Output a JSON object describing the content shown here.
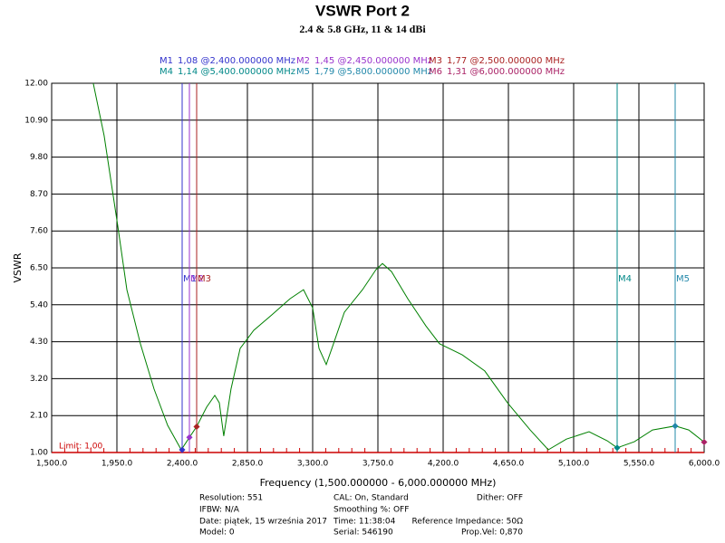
{
  "chart_data": {
    "type": "line",
    "title": "VSWR Port 2",
    "subtitle": "2.4 & 5.8 GHz, 11 & 14 dBi",
    "xlabel": "Frequency (1,500.000000 - 6,000.000000 MHz)",
    "ylabel": "VSWR",
    "xlim": [
      1500,
      6000
    ],
    "xticks": [
      {
        "value": 1500,
        "label": "1,500.0"
      },
      {
        "value": 1950,
        "label": "1,950.0"
      },
      {
        "value": 2400,
        "label": "2,400.0"
      },
      {
        "value": 2850,
        "label": "2,850.0"
      },
      {
        "value": 3300,
        "label": "3,300.0"
      },
      {
        "value": 3750,
        "label": "3,750.0"
      },
      {
        "value": 4200,
        "label": "4,200.0"
      },
      {
        "value": 4650,
        "label": "4,650.0"
      },
      {
        "value": 5100,
        "label": "5,100.0"
      },
      {
        "value": 5550,
        "label": "5,550.0"
      },
      {
        "value": 6000,
        "label": "6,000.0"
      }
    ],
    "ylim": [
      1,
      12
    ],
    "yticks": [
      {
        "value": 1,
        "label": "1.00"
      },
      {
        "value": 2.1,
        "label": "2.10"
      },
      {
        "value": 3.2,
        "label": "3.20"
      },
      {
        "value": 4.3,
        "label": "4.30"
      },
      {
        "value": 5.4,
        "label": "5.40"
      },
      {
        "value": 6.5,
        "label": "6.50"
      },
      {
        "value": 7.6,
        "label": "7.60"
      },
      {
        "value": 8.7,
        "label": "8.70"
      },
      {
        "value": 9.8,
        "label": "9.80"
      },
      {
        "value": 10.9,
        "label": "10.90"
      },
      {
        "value": 12,
        "label": "12.00"
      }
    ],
    "grid": true,
    "series": [
      {
        "color": "#008000",
        "x": [
          1787,
          1862,
          1956,
          2019,
          2112,
          2206,
          2300,
          2394,
          2450,
          2500,
          2569,
          2625,
          2656,
          2687,
          2737,
          2800,
          2894,
          3019,
          3144,
          3237,
          3300,
          3344,
          3394,
          3444,
          3519,
          3644,
          3737,
          3781,
          3844,
          3956,
          4081,
          4175,
          4331,
          4487,
          4644,
          4800,
          4925,
          5050,
          5206,
          5331,
          5400,
          5519,
          5644,
          5800,
          5894,
          6000
        ],
        "values": [
          12.0,
          10.44,
          7.74,
          5.85,
          4.24,
          2.89,
          1.81,
          1.08,
          1.45,
          1.77,
          2.35,
          2.7,
          2.48,
          1.49,
          2.89,
          4.1,
          4.64,
          5.1,
          5.58,
          5.85,
          5.31,
          4.1,
          3.62,
          4.24,
          5.18,
          5.85,
          6.45,
          6.63,
          6.39,
          5.58,
          4.77,
          4.24,
          3.91,
          3.43,
          2.48,
          1.67,
          1.08,
          1.4,
          1.62,
          1.35,
          1.14,
          1.32,
          1.67,
          1.79,
          1.67,
          1.31
        ]
      }
    ],
    "limit": {
      "value": 1,
      "label": "Limit: 1,00",
      "color": "#cc0000"
    },
    "markers": [
      {
        "name": "M1",
        "text": "1,08 @2,400.000000 MHz",
        "x": 2400,
        "value": 1.08,
        "color": "#3333cc"
      },
      {
        "name": "M2",
        "text": "1,45 @2,450.000000 MHz",
        "x": 2450,
        "value": 1.45,
        "color": "#9933cc"
      },
      {
        "name": "M3",
        "text": "1,77 @2,500.000000 MHz",
        "x": 2500,
        "value": 1.77,
        "color": "#aa2222"
      },
      {
        "name": "M4",
        "text": "1,14 @5,400.000000 MHz",
        "x": 5400,
        "value": 1.14,
        "color": "#008888"
      },
      {
        "name": "M5",
        "text": "1,79 @5,800.000000 MHz",
        "x": 5800,
        "value": 1.79,
        "color": "#2288aa"
      },
      {
        "name": "M6",
        "text": "1,31 @6,000.000000 MHz",
        "x": 6000,
        "value": 1.31,
        "color": "#aa2266"
      }
    ],
    "info": [
      [
        "Resolution: 551",
        "IFBW: N/A",
        "Date: piątek, 15 września 2017",
        "Model: 0"
      ],
      [
        "CAL: On, Standard",
        "Smoothing %:  OFF",
        "Time: 11:38:04",
        "Serial: 546190"
      ],
      [
        "Dither:  OFF",
        "Reference Impedance: 50Ω",
        "Prop.Vel: 0,870"
      ]
    ]
  }
}
